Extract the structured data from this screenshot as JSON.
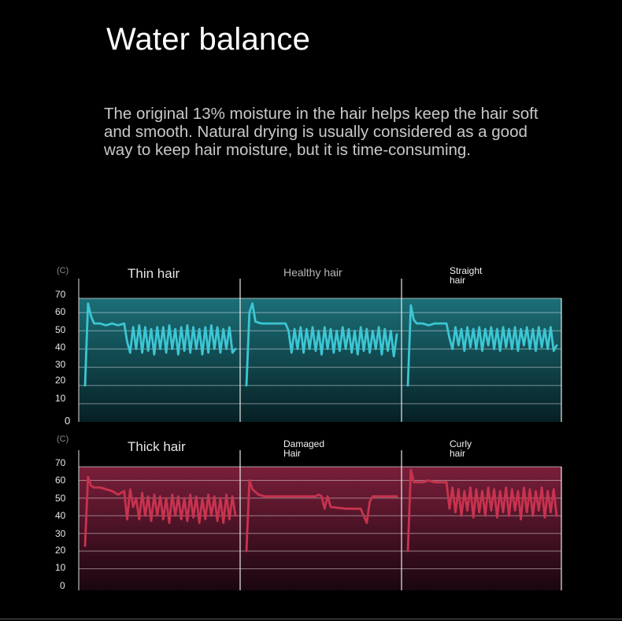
{
  "header": {
    "title": "Water balance",
    "description": "The original 13% moisture in the hair helps keep the hair soft and smooth. Natural drying is usually considered as a good way to keep hair moisture, but it is time-consuming."
  },
  "colors": {
    "teal_line": "#3cc6d3",
    "teal_bg_top": "#1c6f78",
    "teal_bg_bottom": "#062024",
    "pink_line": "#c8334f",
    "pink_bg_top": "#7a1f3a",
    "pink_bg_bottom": "#1a0610"
  },
  "chart_data": [
    {
      "type": "line",
      "unit_label": "(C)",
      "y_ticks": [
        "70",
        "60",
        "50",
        "40",
        "30",
        "20",
        "10",
        "0"
      ],
      "ylim": [
        0,
        70
      ],
      "panels": [
        {
          "title": "Thin hair",
          "series": {
            "x": [
              0,
              1,
              2,
              3,
              5,
              7,
              9,
              11,
              13,
              14,
              15,
              16,
              17,
              18,
              19,
              20,
              21,
              22,
              23,
              24,
              25,
              26,
              27,
              28,
              29,
              30,
              31,
              32,
              33,
              34,
              35,
              36,
              37,
              38,
              39,
              40,
              41,
              42,
              43,
              44,
              45,
              46,
              47,
              48,
              49,
              50
            ],
            "values": [
              20,
              65,
              58,
              54,
              54,
              53,
              54,
              53,
              54,
              44,
              38,
              52,
              40,
              53,
              38,
              52,
              39,
              51,
              37,
              52,
              40,
              52,
              38,
              53,
              40,
              51,
              37,
              52,
              39,
              53,
              38,
              52,
              40,
              51,
              37,
              52,
              38,
              53,
              40,
              52,
              38,
              51,
              40,
              52,
              38,
              40
            ]
          }
        },
        {
          "title": "Healthy hair",
          "series": {
            "x": [
              0,
              1,
              2,
              3,
              5,
              7,
              9,
              11,
              13,
              14,
              15,
              16,
              17,
              18,
              19,
              20,
              21,
              22,
              23,
              24,
              25,
              26,
              27,
              28,
              29,
              30,
              31,
              32,
              33,
              34,
              35,
              36,
              37,
              38,
              39,
              40,
              41,
              42,
              43,
              44,
              45,
              46,
              47,
              48,
              49,
              50
            ],
            "values": [
              20,
              60,
              65,
              55,
              54,
              54,
              54,
              54,
              54,
              50,
              38,
              51,
              40,
              52,
              38,
              51,
              40,
              52,
              39,
              50,
              37,
              52,
              40,
              51,
              38,
              50,
              39,
              52,
              40,
              51,
              38,
              50,
              37,
              52,
              39,
              51,
              38,
              50,
              40,
              52,
              37,
              51,
              39,
              50,
              36,
              48
            ]
          }
        },
        {
          "title": "Straight hair",
          "series": {
            "x": [
              0,
              1,
              2,
              3,
              5,
              7,
              9,
              11,
              13,
              14,
              15,
              16,
              17,
              18,
              19,
              20,
              21,
              22,
              23,
              24,
              25,
              26,
              27,
              28,
              29,
              30,
              31,
              32,
              33,
              34,
              35,
              36,
              37,
              38,
              39,
              40,
              41,
              42,
              43,
              44,
              45,
              46,
              47,
              48,
              49,
              50
            ],
            "values": [
              20,
              64,
              56,
              54,
              54,
              53,
              54,
              54,
              54,
              46,
              40,
              52,
              42,
              51,
              39,
              52,
              41,
              51,
              40,
              52,
              39,
              51,
              42,
              52,
              40,
              51,
              39,
              52,
              41,
              51,
              40,
              52,
              39,
              51,
              42,
              52,
              40,
              51,
              39,
              52,
              41,
              51,
              40,
              52,
              39,
              42
            ]
          }
        }
      ]
    },
    {
      "type": "line",
      "unit_label": "(C)",
      "y_ticks": [
        "70",
        "60",
        "50",
        "40",
        "30",
        "20",
        "10",
        "0"
      ],
      "ylim": [
        0,
        70
      ],
      "panels": [
        {
          "title": "Thick hair",
          "series": {
            "x": [
              0,
              1,
              2,
              3,
              5,
              7,
              9,
              11,
              13,
              14,
              15,
              16,
              17,
              18,
              19,
              20,
              21,
              22,
              23,
              24,
              25,
              26,
              27,
              28,
              29,
              30,
              31,
              32,
              33,
              34,
              35,
              36,
              37,
              38,
              39,
              40,
              41,
              42,
              43,
              44,
              45,
              46,
              47,
              48,
              49,
              50
            ],
            "values": [
              23,
              62,
              57,
              56,
              56,
              55,
              54,
              52,
              54,
              38,
              55,
              45,
              50,
              38,
              53,
              40,
              51,
              37,
              52,
              40,
              51,
              38,
              50,
              36,
              52,
              40,
              51,
              38,
              50,
              37,
              52,
              39,
              51,
              36,
              50,
              38,
              52,
              40,
              51,
              37,
              50,
              36,
              52,
              38,
              51,
              40
            ]
          }
        },
        {
          "title": "Damaged Hair",
          "series": {
            "x": [
              0,
              1,
              2,
              4,
              6,
              9,
              12,
              15,
              18,
              21,
              23,
              24,
              25,
              26,
              27,
              28,
              33,
              38,
              40,
              41,
              42,
              45,
              48,
              50
            ],
            "values": [
              20,
              60,
              55,
              52,
              51,
              51,
              51,
              51,
              51,
              51,
              51,
              52,
              51,
              44,
              51,
              45,
              44,
              44,
              36,
              48,
              51,
              51,
              51,
              51
            ]
          }
        },
        {
          "title": "Curly hair",
          "series": {
            "x": [
              0,
              1,
              2,
              3,
              5,
              7,
              9,
              11,
              13,
              14,
              15,
              16,
              17,
              18,
              19,
              20,
              21,
              22,
              23,
              24,
              25,
              26,
              27,
              28,
              29,
              30,
              31,
              32,
              33,
              34,
              35,
              36,
              37,
              38,
              39,
              40,
              41,
              42,
              43,
              44,
              45,
              46,
              47,
              48,
              49,
              50
            ],
            "values": [
              20,
              66,
              59,
              59,
              59,
              60,
              59,
              59,
              59,
              44,
              56,
              42,
              55,
              40,
              54,
              43,
              56,
              39,
              55,
              42,
              54,
              40,
              56,
              43,
              55,
              39,
              54,
              42,
              56,
              40,
              55,
              43,
              54,
              38,
              56,
              42,
              55,
              40,
              54,
              43,
              56,
              39,
              54,
              42,
              55,
              40
            ]
          }
        }
      ]
    }
  ]
}
